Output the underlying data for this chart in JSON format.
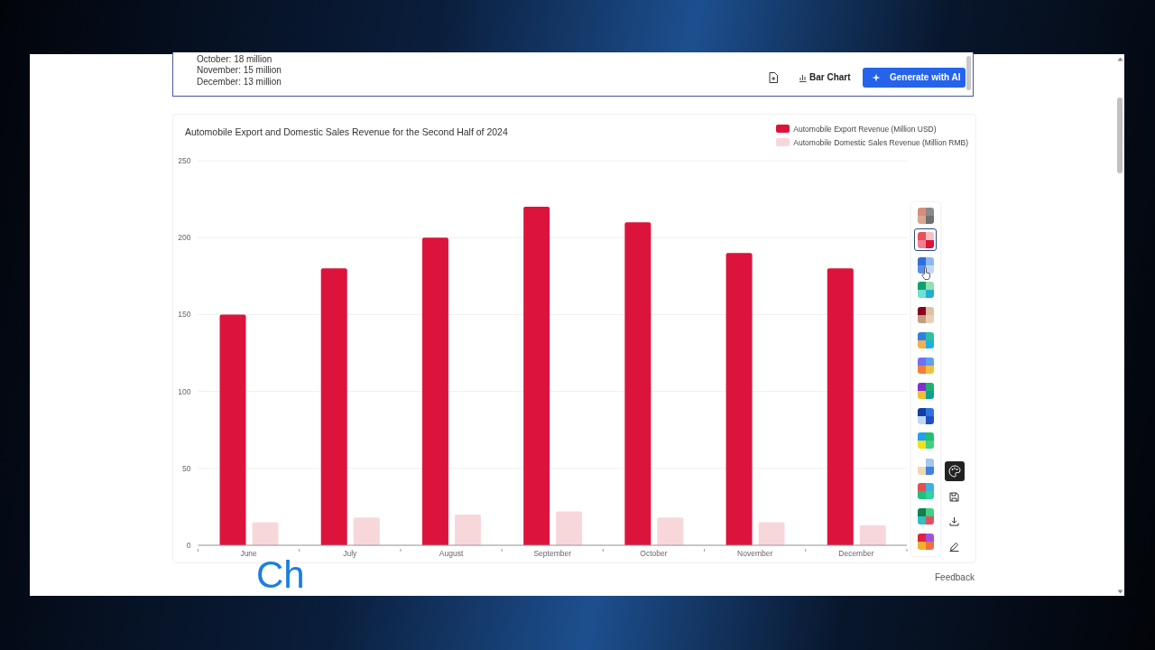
{
  "chart_data": {
    "type": "bar",
    "title": "Automobile Export and Domestic Sales Revenue for the Second Half of 2024",
    "categories": [
      "June",
      "July",
      "August",
      "September",
      "October",
      "November",
      "December"
    ],
    "series": [
      {
        "name": "Automobile Export Revenue (Million USD)",
        "color": "#dc143c",
        "values": [
          150,
          180,
          200,
          220,
          210,
          190,
          180
        ]
      },
      {
        "name": "Automobile Domestic Sales Revenue (Million RMB)",
        "color": "#f8d7da",
        "values": [
          15,
          18,
          20,
          22,
          18,
          15,
          13
        ]
      }
    ],
    "ylim": [
      0,
      250
    ],
    "yticks": [
      0,
      50,
      100,
      150,
      200,
      250
    ],
    "grid": "y",
    "legend": "top right",
    "annotations": [
      "October: 18 million",
      "November: 15 million",
      "December: 13 million",
      "Bar Chart",
      "Generate with AI",
      "Feedback",
      "Ch"
    ]
  }
}
